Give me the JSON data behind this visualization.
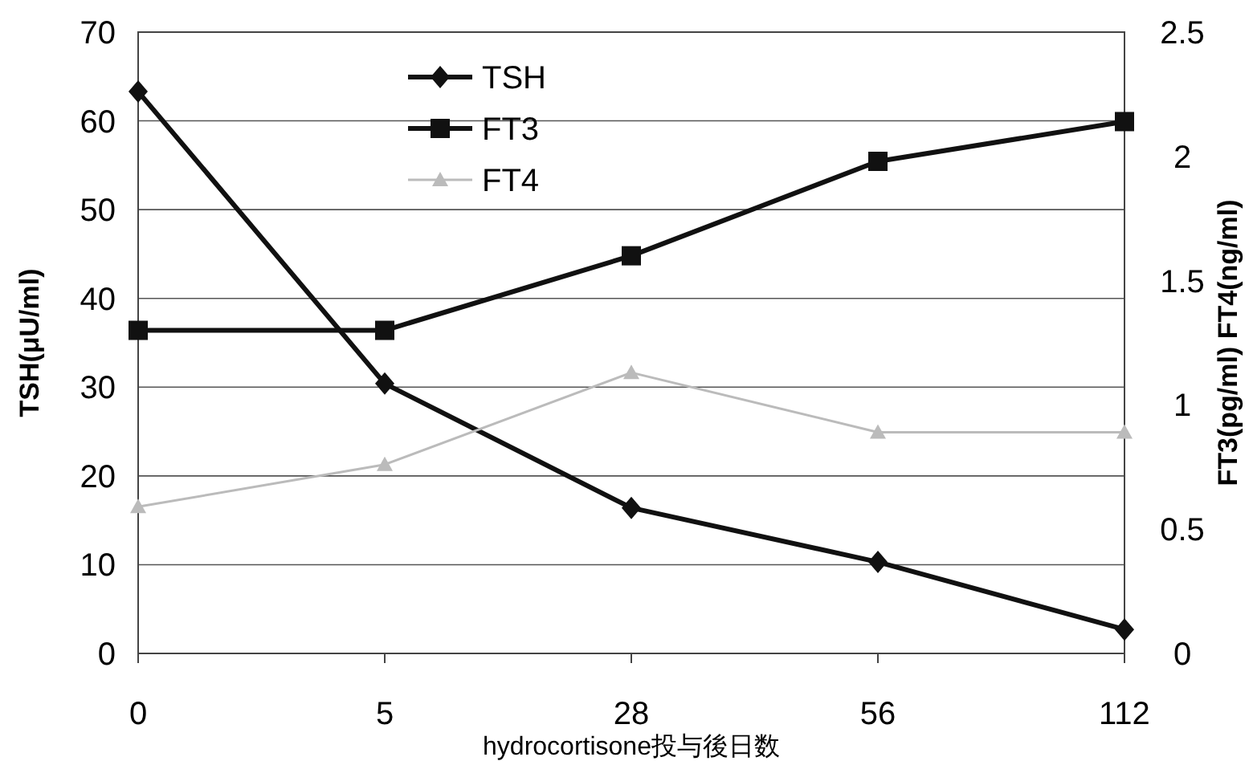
{
  "chart_data": {
    "type": "line",
    "xlabel": "hydrocortisone投与後日数",
    "ylabel": "TSH(μU/ml)",
    "y2label": "FT3(pg/ml) FT4(ng/ml)",
    "categories": [
      "0",
      "5",
      "28",
      "56",
      "112"
    ],
    "ylim": [
      0,
      70
    ],
    "yticks": [
      0,
      10,
      20,
      30,
      40,
      50,
      60,
      70
    ],
    "y2lim": [
      0,
      2.5
    ],
    "y2ticks": [
      0,
      0.5,
      1,
      1.5,
      2,
      2.5
    ],
    "grid": "y",
    "legend": "top left",
    "series": [
      {
        "name": "TSH",
        "color": "#111111",
        "marker": "diamond",
        "values": [
          63.3,
          30.4,
          16.4,
          10.3,
          2.7
        ]
      },
      {
        "name": "FT3",
        "color": "#111111",
        "marker": "square",
        "axis": "y2",
        "values": [
          1.3,
          1.3,
          1.6,
          1.98,
          2.14
        ]
      },
      {
        "name": "FT4",
        "color": "#bbbbbb",
        "marker": "triangle",
        "axis": "y2",
        "values": [
          0.59,
          0.76,
          1.13,
          0.89,
          0.89
        ]
      }
    ]
  }
}
